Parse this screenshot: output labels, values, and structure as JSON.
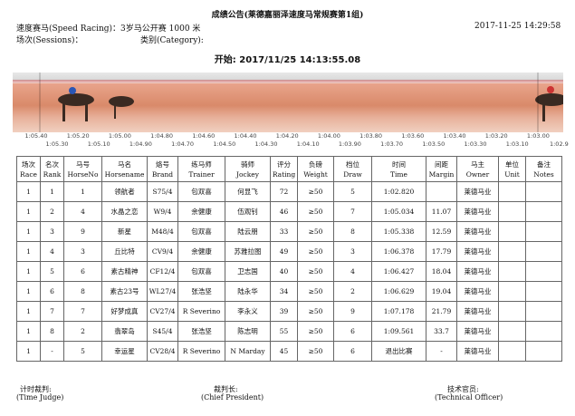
{
  "header": {
    "title": "成绩公告(莱德嘉丽泽速度马常规赛第1组)",
    "event": "速度赛马(Speed Racing)：3岁马公开赛 1000 米",
    "datetime": "2017-11-25   14:29:58",
    "sessions": "场次(Sessions)：",
    "category": "类别(Category):",
    "start": "开始: 2017/11/25 14:13:55.08"
  },
  "scale": {
    "top": [
      "1:05.40",
      "1:05.20",
      "1:05.00",
      "1:04.80",
      "1:04.60",
      "1:04.40",
      "1:04.20",
      "1:04.00",
      "1:03.80",
      "1:03.60",
      "1:03.40",
      "1:03.20",
      "1:03.00"
    ],
    "bottom": [
      "1:05.30",
      "1:05.10",
      "1:04.90",
      "1:04.70",
      "1:04.50",
      "1:04.30",
      "1:04.10",
      "1:03.90",
      "1:03.70",
      "1:03.50",
      "1:03.30",
      "1:03.10",
      "1:02.9"
    ]
  },
  "table": {
    "columns": [
      [
        "场次",
        "Race"
      ],
      [
        "名次",
        "Rank"
      ],
      [
        "马号",
        "HorseNo"
      ],
      [
        "马名",
        "Horsename"
      ],
      [
        "烙号",
        "Brand"
      ],
      [
        "练马师",
        "Trainer"
      ],
      [
        "骑师",
        "Jockey"
      ],
      [
        "评分",
        "Rating"
      ],
      [
        "负磅",
        "Weight"
      ],
      [
        "档位",
        "Draw"
      ],
      [
        "时间",
        "Time"
      ],
      [
        "间距",
        "Margin"
      ],
      [
        "马主",
        "Owner"
      ],
      [
        "单位",
        "Unit"
      ],
      [
        "备注",
        "Notes"
      ]
    ],
    "rows": [
      [
        "1",
        "1",
        "1",
        "领航者",
        "S75/4",
        "包双喜",
        "何显飞",
        "72",
        "≥50",
        "5",
        "1:02.820",
        null,
        "莱德马业"
      ],
      [
        "1",
        "2",
        "4",
        "水晶之恋",
        "W9/4",
        "余健康",
        "伍观钊",
        "46",
        "≥50",
        "7",
        "1:05.034",
        "11.07",
        "莱德马业"
      ],
      [
        "1",
        "3",
        "9",
        "新星",
        "M48/4",
        "包双喜",
        "陆云朋",
        "33",
        "≥50",
        "8",
        "1:05.338",
        "12.59",
        "莱德马业"
      ],
      [
        "1",
        "4",
        "3",
        "丘比特",
        "CV9/4",
        "余健康",
        "苏雅拉图",
        "49",
        "≥50",
        "3",
        "1:06.378",
        "17.79",
        "莱德马业"
      ],
      [
        "1",
        "5",
        "6",
        "素古精神",
        "CF12/4",
        "包双喜",
        "卫志国",
        "40",
        "≥50",
        "4",
        "1:06.427",
        "18.04",
        "莱德马业"
      ],
      [
        "1",
        "6",
        "8",
        "素古23号",
        "WL27/4",
        "张浩坚",
        "陆永华",
        "34",
        "≥50",
        "2",
        "1:06.629",
        "19.04",
        "莱德马业"
      ],
      [
        "1",
        "7",
        "7",
        "好梦成真",
        "CV27/4",
        "R Severino",
        "李永义",
        "39",
        "≥50",
        "9",
        "1:07.178",
        "21.79",
        "莱德马业"
      ],
      [
        "1",
        "8",
        "2",
        "翡翠岛",
        "S45/4",
        "张浩坚",
        "陈志明",
        "55",
        "≥50",
        "6",
        "1:09.561",
        "33.7",
        "莱德马业"
      ],
      [
        "1",
        "-",
        "5",
        "幸运星",
        "CV28/4",
        "R Severino",
        "N Marday",
        "45",
        "≥50",
        "6",
        "退出比赛",
        "-",
        "莱德马业"
      ]
    ]
  },
  "footer": {
    "time_judge": "计时裁判:",
    "time_judge_en": "(Time Judge)",
    "chief": "裁判长:",
    "chief_en": "(Chief President)",
    "technical": "技术官员:",
    "technical_en": "(Technical Officer)"
  }
}
